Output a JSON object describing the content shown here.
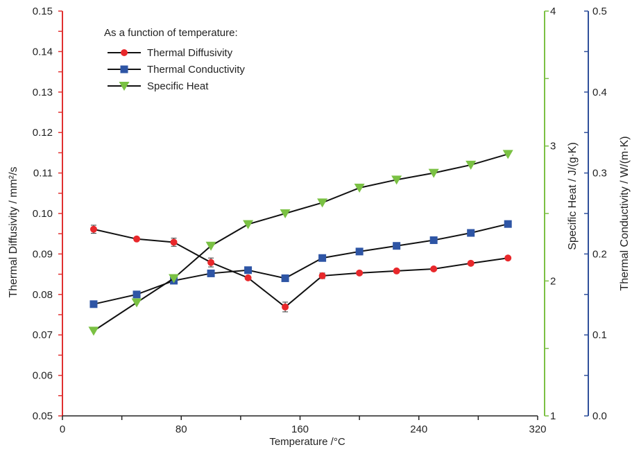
{
  "chart_data": {
    "type": "line",
    "legend_title": "As a function of temperature:",
    "legend_position": "top-left",
    "grid": false,
    "x": [
      21,
      50,
      75,
      100,
      125,
      150,
      175,
      200,
      225,
      250,
      275,
      300
    ],
    "xlabel": "Temperature /°C",
    "xlim": [
      0,
      320
    ],
    "xticks": [
      0,
      80,
      160,
      240,
      320
    ],
    "x_tick_labels": [
      "0",
      "80",
      "160",
      "240",
      "320"
    ],
    "axes": {
      "left": {
        "label": "Thermal Diffusivity / mm²/s",
        "color": "#e03030",
        "lim": [
          0.05,
          0.15
        ],
        "ticks": [
          0.05,
          0.06,
          0.07,
          0.08,
          0.09,
          0.1,
          0.11,
          0.12,
          0.13,
          0.14,
          0.15
        ],
        "tick_labels": [
          "0.05",
          "0.06",
          "0.07",
          "0.08",
          "0.09",
          "0.10",
          "0.11",
          "0.12",
          "0.13",
          "0.14",
          "0.15"
        ]
      },
      "right1": {
        "label": "Specific Heat / J/(g·K)",
        "color": "#7bc043",
        "lim": [
          1,
          4
        ],
        "ticks": [
          1,
          2,
          3,
          4
        ],
        "tick_labels": [
          "1",
          "2",
          "3",
          "4"
        ]
      },
      "right2": {
        "label": "Thermal Conductivity / W/(m·K)",
        "color": "#2f4f9a",
        "lim": [
          0.0,
          0.5
        ],
        "ticks": [
          0.0,
          0.1,
          0.2,
          0.3,
          0.4,
          0.5
        ],
        "tick_labels": [
          "0.0",
          "0.1",
          "0.2",
          "0.3",
          "0.4",
          "0.5"
        ]
      }
    },
    "series": [
      {
        "name": "Thermal Diffusivity",
        "axis": "left",
        "marker": "circle",
        "marker_color": "#e8282b",
        "values": [
          0.0961,
          0.0937,
          0.0929,
          0.0879,
          0.0841,
          0.0769,
          0.0846,
          0.0853,
          0.0858,
          0.0863,
          0.0877,
          0.089
        ],
        "errors": [
          0.001,
          0.0004,
          0.001,
          0.0011,
          0.0004,
          0.0012,
          0.0007,
          0.0004,
          0.0003,
          0.0003,
          0.0004,
          0.0004
        ]
      },
      {
        "name": "Thermal Conductivity",
        "axis": "right2",
        "marker": "square",
        "marker_color": "#2e55a5",
        "values": [
          0.138,
          0.15,
          0.167,
          0.176,
          0.18,
          0.17,
          0.195,
          0.203,
          0.21,
          0.217,
          0.226,
          0.237
        ]
      },
      {
        "name": "Specific Heat",
        "axis": "right1",
        "marker": "triangle-down",
        "marker_color": "#7ac143",
        "values": [
          1.63,
          1.84,
          2.02,
          2.26,
          2.42,
          2.5,
          2.58,
          2.69,
          2.75,
          2.8,
          2.86,
          2.94
        ]
      }
    ]
  }
}
